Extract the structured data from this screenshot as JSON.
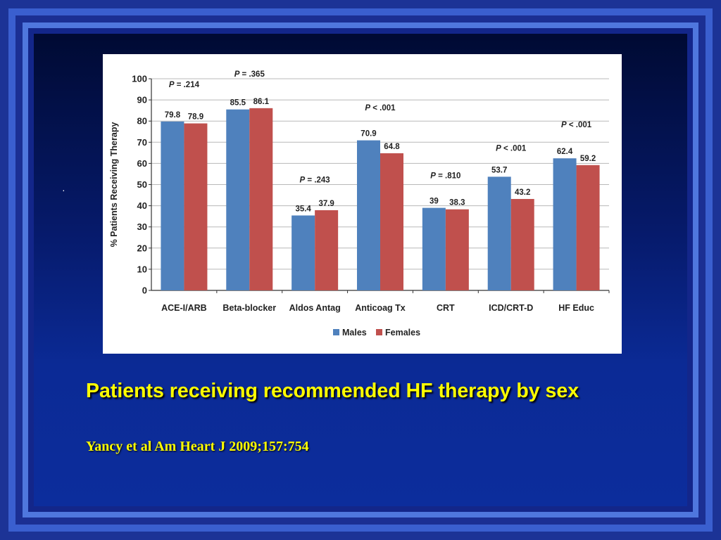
{
  "slide": {
    "bullet": "·",
    "caption": "Patients receiving recommended HF therapy by sex",
    "citation": "Yancy et al Am Heart J 2009;157:754"
  },
  "chart_data": {
    "type": "bar",
    "categories": [
      "ACE-I/ARB",
      "Beta-blocker",
      "Aldos Antag",
      "Anticoag Tx",
      "CRT",
      "ICD/CRT-D",
      "HF Educ"
    ],
    "series": [
      {
        "name": "Males",
        "color": "#4f81bd",
        "values": [
          79.8,
          85.5,
          35.4,
          70.9,
          39,
          53.7,
          62.4
        ],
        "labels": [
          "79.8",
          "85.5",
          "35.4",
          "70.9",
          "39",
          "53.7",
          "62.4"
        ]
      },
      {
        "name": "Females",
        "color": "#c0504d",
        "values": [
          78.9,
          86.1,
          37.9,
          64.8,
          38.3,
          43.2,
          59.2
        ],
        "labels": [
          "78.9",
          "86.1",
          "37.9",
          "64.8",
          "38.3",
          "43.2",
          "59.2"
        ]
      }
    ],
    "p_values": [
      {
        "prefix": "P",
        "rest": " = .214",
        "y": 96
      },
      {
        "prefix": "P",
        "rest": " = .365",
        "y": 101
      },
      {
        "prefix": "P",
        "rest": " = .243",
        "y": 51
      },
      {
        "prefix": "P",
        "rest": " < .001",
        "y": 85
      },
      {
        "prefix": "P",
        "rest": " = .810",
        "y": 53
      },
      {
        "prefix": "P",
        "rest": " < .001",
        "y": 66
      },
      {
        "prefix": "P",
        "rest": " < .001",
        "y": 77
      }
    ],
    "ylabel": "% Patients Receiving Therapy",
    "xlabel": "",
    "ylim": [
      0,
      100
    ],
    "yticks": [
      0,
      10,
      20,
      30,
      40,
      50,
      60,
      70,
      80,
      90,
      100
    ],
    "grid": true,
    "legend": "bottom-center"
  }
}
